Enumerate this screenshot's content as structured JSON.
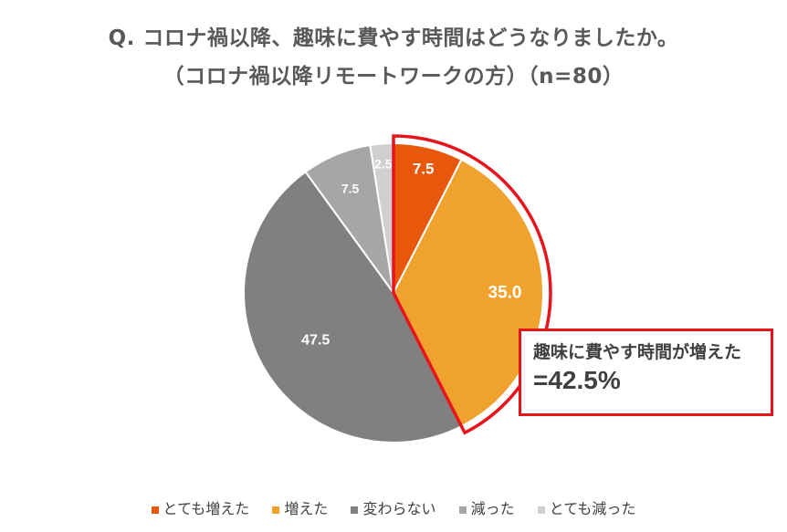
{
  "title": {
    "line1": "Q. コロナ禍以降、趣味に費やす時間はどうなりましたか。",
    "line2": "（コロナ禍以降リモートワークの方）（n=80）"
  },
  "callout": {
    "line1": "趣味に費やす時間が増えた",
    "line2": "=42.5%"
  },
  "colors": {
    "highlight_border": "#e8141b"
  },
  "chart_data": {
    "type": "pie",
    "start_angle_deg": 0,
    "direction": "clockwise",
    "categories": [
      "とても増えた",
      "増えた",
      "変わらない",
      "減った",
      "とても減った"
    ],
    "values": [
      7.5,
      35.0,
      47.5,
      7.5,
      2.5
    ],
    "value_labels": [
      "7.5",
      "35.0",
      "47.5",
      "7.5",
      "2.5"
    ],
    "colors": [
      "#e8580c",
      "#f0a22e",
      "#808080",
      "#a6a6a6",
      "#d0d0d0"
    ],
    "legend_position": "bottom",
    "highlight": {
      "categories": [
        "とても増えた",
        "増えた"
      ],
      "total": 42.5
    }
  }
}
